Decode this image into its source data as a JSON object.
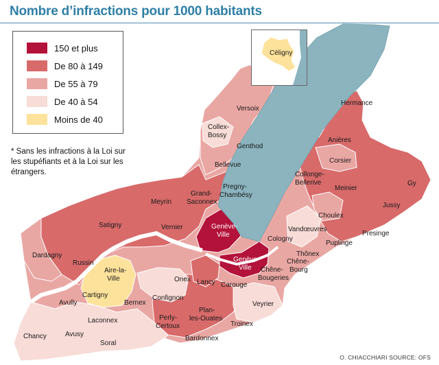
{
  "title": "Nombre d’infractions pour 1000 habitants",
  "legend": [
    {
      "label": "150 et plus",
      "color": "#b3123a"
    },
    {
      "label": "De 80 à 149",
      "color": "#d86a6a"
    },
    {
      "label": "De 55 à 79",
      "color": "#e9a7a3"
    },
    {
      "label": "De 40 à 54",
      "color": "#f8dcd7"
    },
    {
      "label": "Moins de 40",
      "color": "#fde29b"
    }
  ],
  "note": "* Sans les infractions à la Loi sur les stupéfiants et à la Loi sur les étrangers.",
  "inset_label": "Céligny",
  "credit": "O. CHIACCHIARI  SOURCE: OFS",
  "communes": {
    "hermance": "Hermance",
    "anieres": "Anières",
    "corsier": "Corsier",
    "collonge": [
      "Collonge-",
      "Bellerive"
    ],
    "meinier": "Meinier",
    "gy": "Gy",
    "jussy": "Jussy",
    "choulex": "Choulex",
    "vandoeuvres": "Vandœuvres",
    "presinge": "Presinge",
    "puplinge": "Puplinge",
    "cologny": "Cologny",
    "thonex": "Thônex",
    "chenebourg": [
      "Chêne-",
      "Bourg"
    ],
    "chenebougeries": [
      "Chêne-",
      "Bougeries"
    ],
    "versoix": "Versoix",
    "collexbossy": [
      "Collex-",
      "Bossy"
    ],
    "genthod": "Genthod",
    "bellevue": "Bellevue",
    "pregny": [
      "Pregny-",
      "Chambésy"
    ],
    "grandsaconnex": [
      "Grand-",
      "Saconnex"
    ],
    "meyrin": "Meyrin",
    "satigny": "Satigny",
    "vernier": "Vernier",
    "geneveville1": [
      "Genève-",
      "Ville"
    ],
    "geneveville2": [
      "Genève-",
      "Ville"
    ],
    "dardagny": "Dardagny",
    "russin": "Russin",
    "airelaville": [
      "Aire-la-",
      "Ville"
    ],
    "cartigny": "Cartigny",
    "avully": "Avully",
    "bernex": "Bernex",
    "onex": "Onex",
    "confignon": "Confignon",
    "lancy": "Lancy",
    "carouge": "Carouge",
    "veyrier": "Veyrier",
    "laconnex": "Laconnex",
    "perlycertoux": [
      "Perly-",
      "Certoux"
    ],
    "planlesouates": [
      "Plan-",
      "les-Ouates"
    ],
    "troinex": "Troinex",
    "chancy": "Chancy",
    "avusy": "Avusy",
    "soral": "Soral",
    "bardonnex": "Bardonnex"
  }
}
